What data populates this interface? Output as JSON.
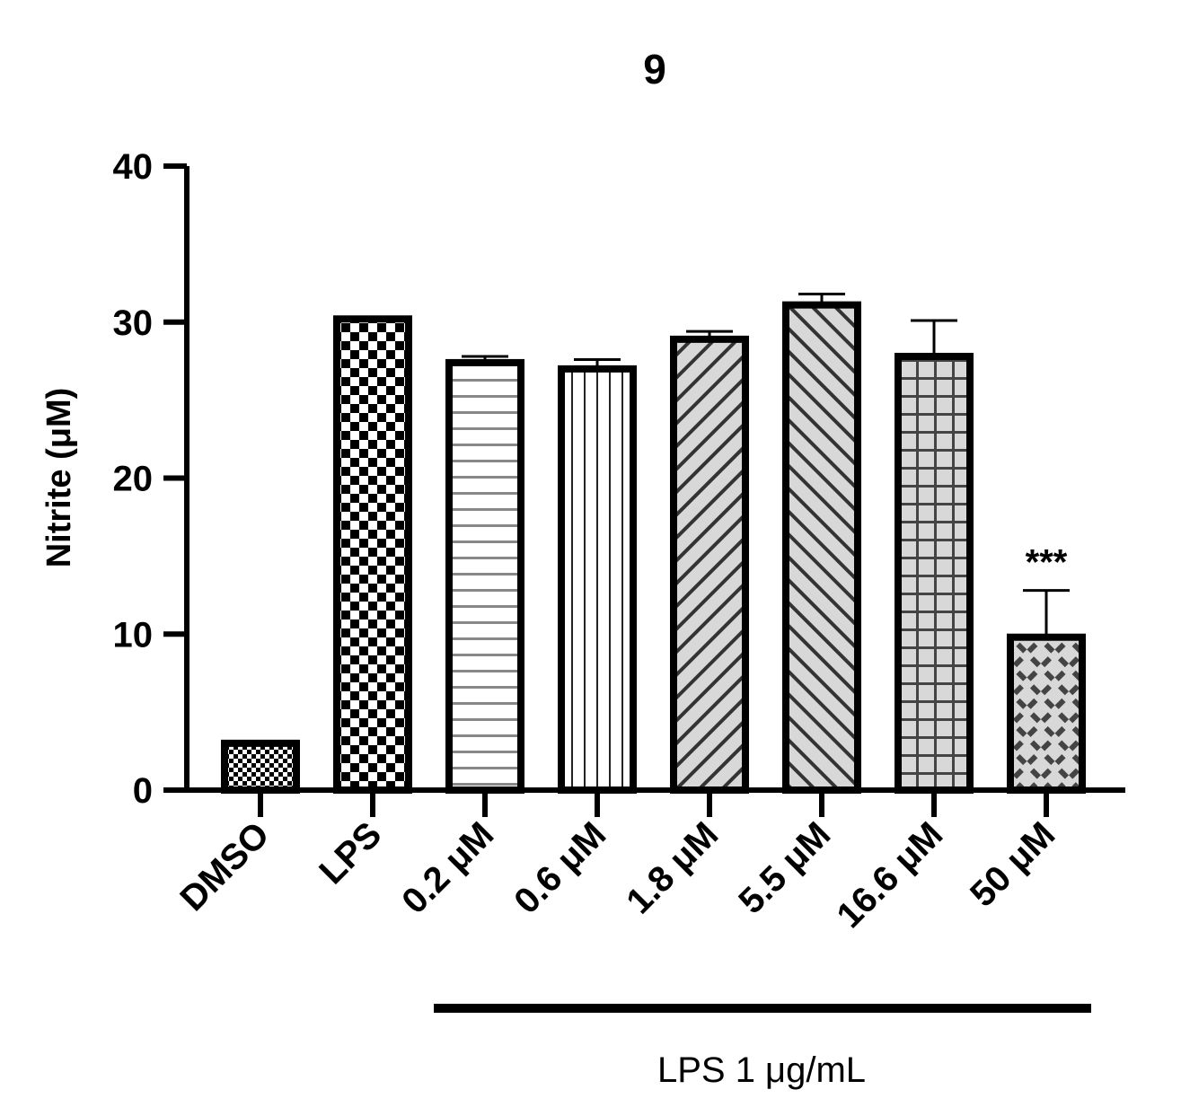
{
  "chart_data": {
    "type": "bar",
    "title": "9",
    "ylabel": "Nitrite (μM)",
    "xlabel": "",
    "ylim": [
      0,
      40
    ],
    "yticks": [
      0,
      10,
      20,
      30,
      40
    ],
    "categories": [
      "DMSO",
      "LPS",
      "0.2 μM",
      "0.6 μM",
      "1.8 μM",
      "5.5 μM",
      "16.6 μM",
      "50 μM"
    ],
    "values": [
      3.0,
      30.2,
      27.4,
      27.0,
      28.9,
      31.1,
      27.8,
      9.8
    ],
    "errors": [
      0,
      0,
      0.4,
      0.6,
      0.5,
      0.7,
      2.3,
      3.0
    ],
    "patterns": [
      "fine-check",
      "checker",
      "horizontal",
      "vertical",
      "diag-up",
      "diag-down",
      "grid",
      "weave"
    ],
    "annotations": [
      {
        "category": "50 μM",
        "text": "***"
      }
    ],
    "bracket": {
      "label": "LPS 1 μg/mL",
      "from": "0.2 μM",
      "to": "50 μM"
    },
    "grid": false,
    "legend": "none"
  }
}
